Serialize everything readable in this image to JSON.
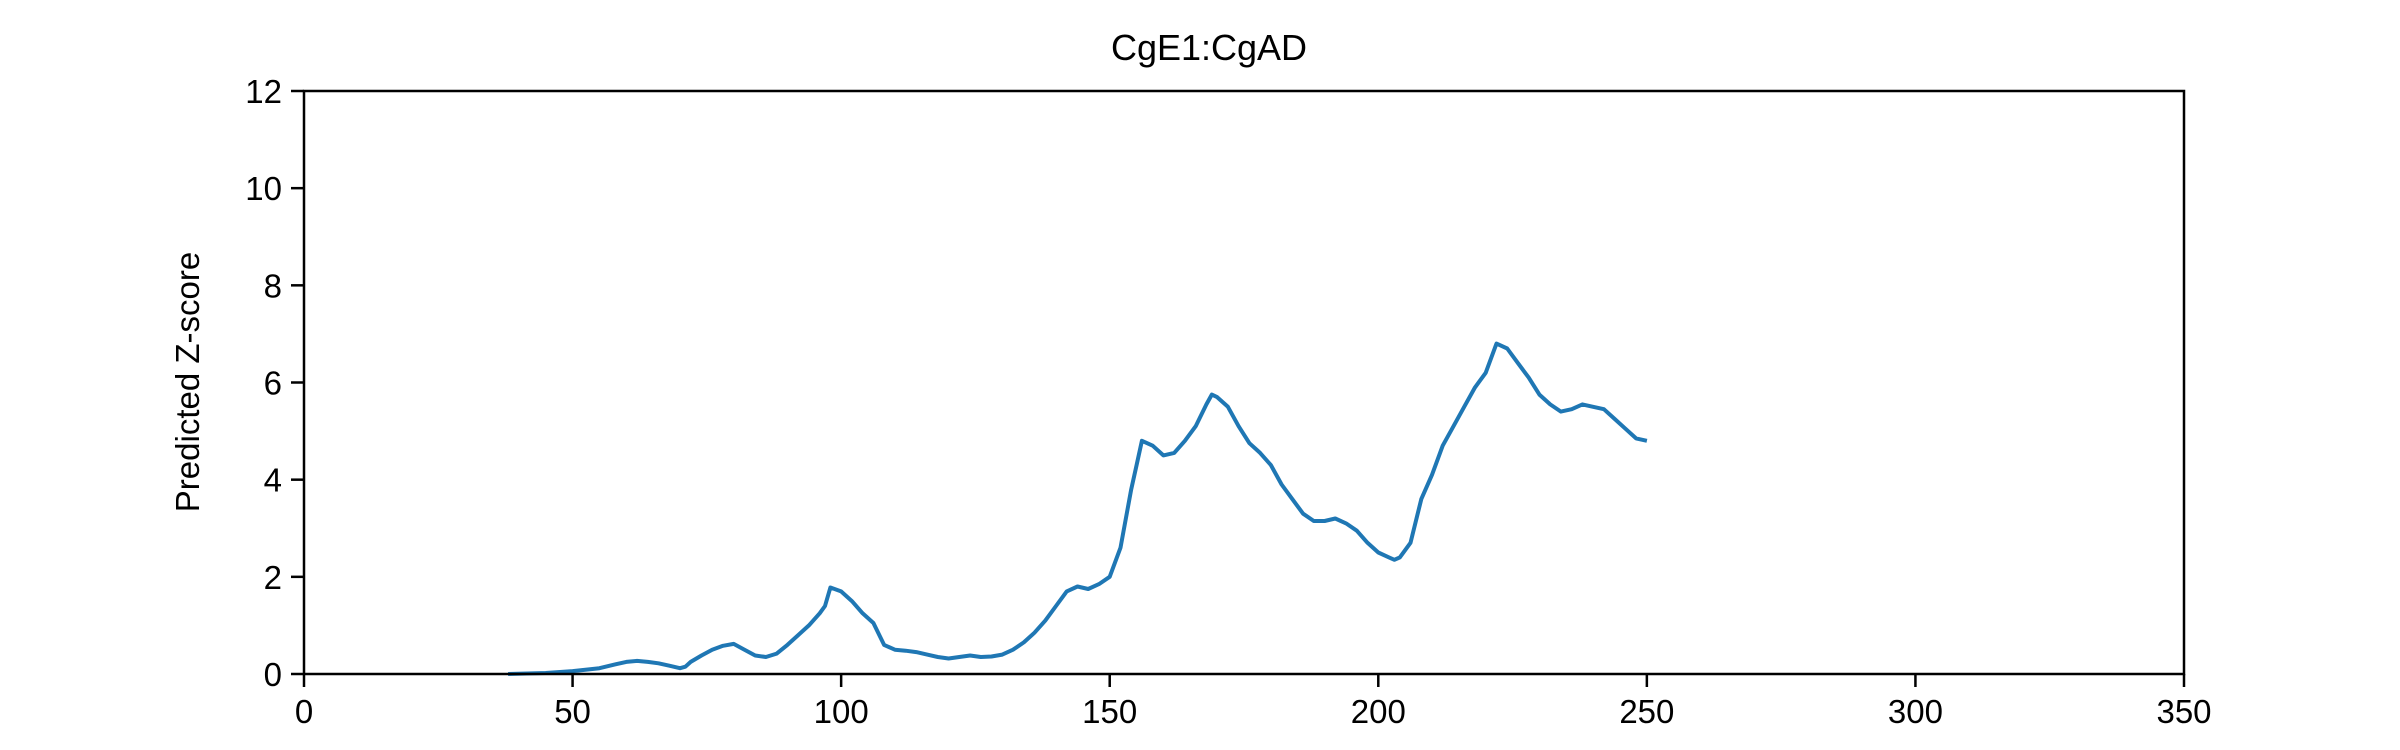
{
  "chart_data": {
    "type": "line",
    "title": "CgE1:CgAD",
    "xlabel": "",
    "ylabel": "Predicted Z-score",
    "xlim": [
      0,
      350
    ],
    "ylim": [
      0,
      12
    ],
    "x_ticks": [
      "0",
      "50",
      "100",
      "150",
      "200",
      "250",
      "300",
      "350"
    ],
    "y_ticks": [
      "0",
      "2",
      "4",
      "6",
      "8",
      "10",
      "12"
    ],
    "grid": false,
    "legend": "none",
    "colors": {
      "line": "#1f77b4",
      "axes": "#000000",
      "background": "#ffffff"
    },
    "series": [
      {
        "x": [
          38,
          45,
          50,
          55,
          58,
          60,
          62,
          64,
          66,
          68,
          70,
          71,
          72,
          74,
          76,
          78,
          80,
          82,
          84,
          86,
          88,
          90,
          92,
          94,
          96,
          97,
          98,
          100,
          102,
          104,
          106,
          108,
          110,
          112,
          114,
          116,
          118,
          120,
          122,
          124,
          126,
          128,
          130,
          132,
          134,
          136,
          138,
          140,
          142,
          144,
          146,
          148,
          150,
          152,
          154,
          155,
          156,
          158,
          160,
          162,
          164,
          166,
          168,
          169,
          170,
          172,
          174,
          176,
          178,
          180,
          182,
          184,
          186,
          188,
          190,
          192,
          194,
          196,
          198,
          200,
          202,
          203,
          204,
          206,
          208,
          210,
          212,
          214,
          216,
          218,
          220,
          222,
          224,
          226,
          228,
          230,
          232,
          234,
          236,
          238,
          240,
          242,
          244,
          246,
          248,
          250
        ],
        "y": [
          0.0,
          0.02,
          0.06,
          0.12,
          0.2,
          0.25,
          0.27,
          0.25,
          0.22,
          0.17,
          0.12,
          0.15,
          0.25,
          0.38,
          0.5,
          0.58,
          0.62,
          0.5,
          0.38,
          0.35,
          0.42,
          0.6,
          0.8,
          1.0,
          1.25,
          1.4,
          1.78,
          1.7,
          1.5,
          1.25,
          1.05,
          0.6,
          0.5,
          0.48,
          0.45,
          0.4,
          0.35,
          0.32,
          0.35,
          0.38,
          0.35,
          0.36,
          0.4,
          0.5,
          0.65,
          0.85,
          1.1,
          1.4,
          1.7,
          1.8,
          1.75,
          1.85,
          2.0,
          2.6,
          3.8,
          4.3,
          4.8,
          4.7,
          4.5,
          4.55,
          4.8,
          5.1,
          5.55,
          5.75,
          5.7,
          5.5,
          5.1,
          4.75,
          4.55,
          4.3,
          3.9,
          3.6,
          3.3,
          3.15,
          3.15,
          3.2,
          3.1,
          2.95,
          2.7,
          2.5,
          2.4,
          2.35,
          2.4,
          2.7,
          3.6,
          4.1,
          4.7,
          5.1,
          5.5,
          5.9,
          6.2,
          6.8,
          6.7,
          6.4,
          6.1,
          5.75,
          5.55,
          5.4,
          5.45,
          5.55,
          5.5,
          5.45,
          5.25,
          5.05,
          4.85,
          4.8
        ]
      }
    ]
  }
}
